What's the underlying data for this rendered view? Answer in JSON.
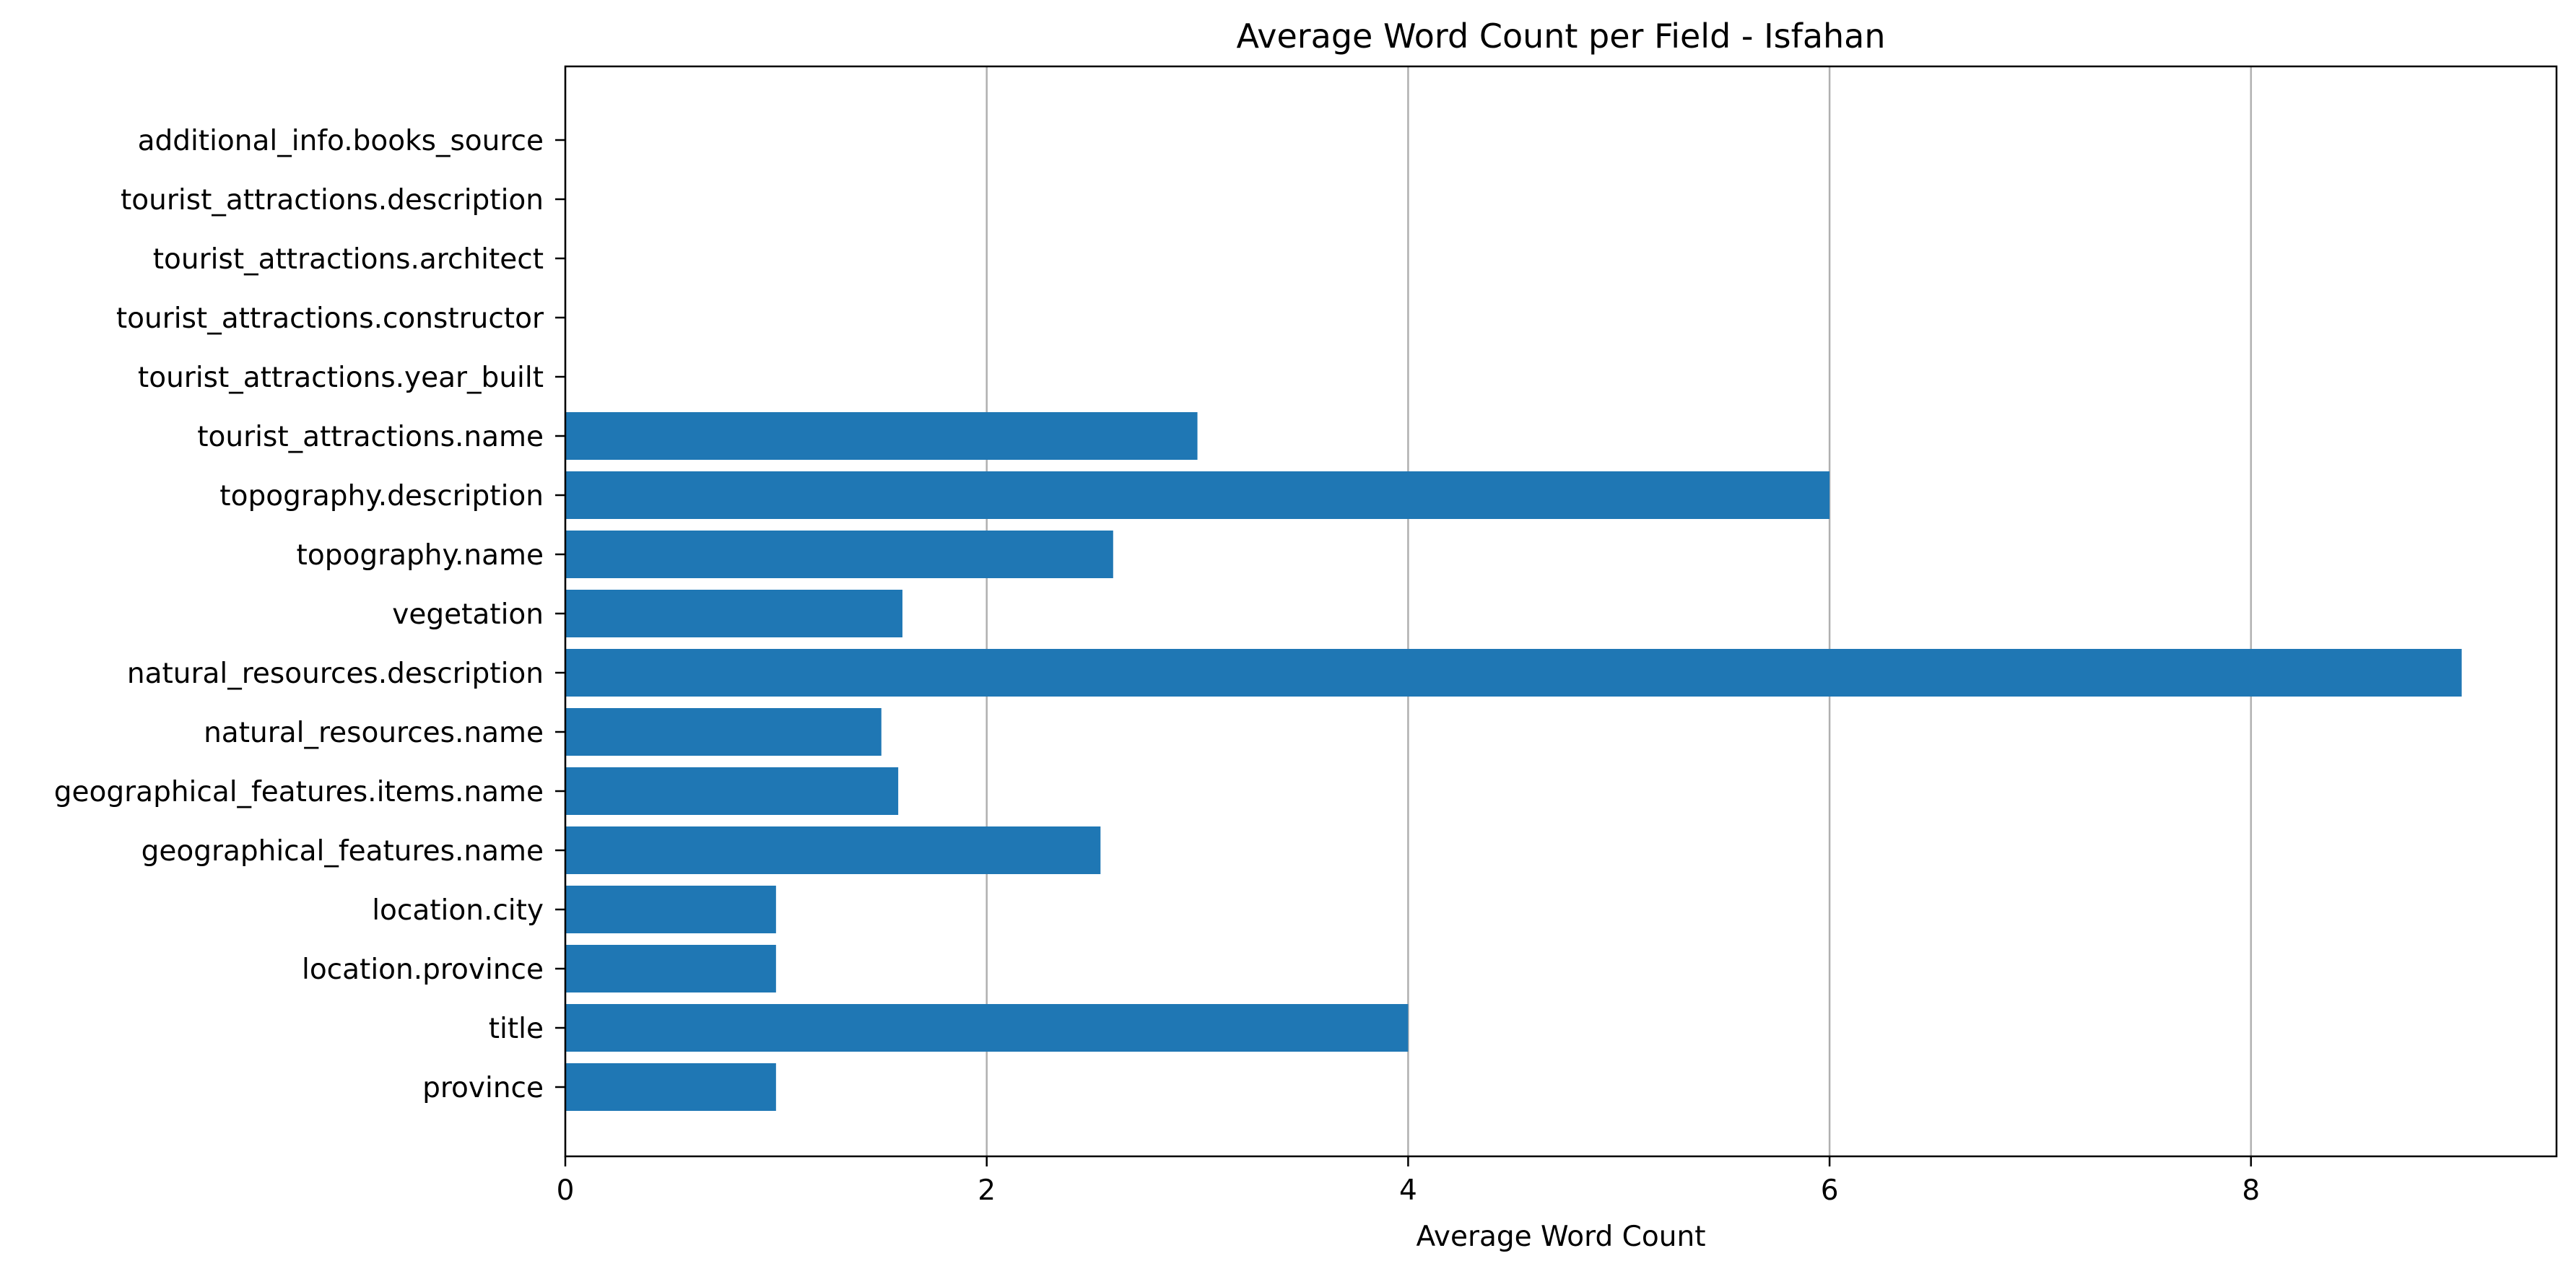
{
  "chart_data": {
    "type": "bar",
    "orientation": "horizontal",
    "title": "Average Word Count per Field - Isfahan",
    "xlabel": "Average Word Count",
    "ylabel": "",
    "categories": [
      "province",
      "title",
      "location.province",
      "location.city",
      "geographical_features.name",
      "geographical_features.items.name",
      "natural_resources.name",
      "natural_resources.description",
      "vegetation",
      "topography.name",
      "topography.description",
      "tourist_attractions.name",
      "tourist_attractions.year_built",
      "tourist_attractions.constructor",
      "tourist_attractions.architect",
      "tourist_attractions.description",
      "additional_info.books_source"
    ],
    "values": [
      1,
      4,
      1,
      1,
      2.54,
      1.58,
      1.5,
      9,
      1.6,
      2.6,
      6,
      3,
      0,
      0,
      0,
      0,
      0
    ],
    "xlim": [
      0,
      9.45
    ],
    "xticks": [
      0,
      2,
      4,
      6,
      8
    ],
    "grid": "x",
    "bar_color": "#1f77b4"
  }
}
